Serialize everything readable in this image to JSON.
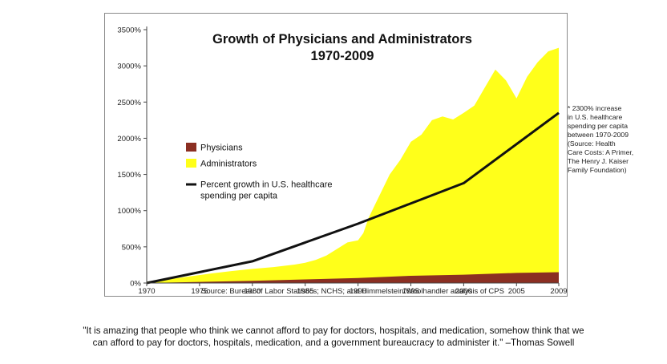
{
  "chart_data": {
    "type": "area",
    "title": [
      "Growth of Physicians and Administrators",
      "1970-2009"
    ],
    "xlabel": "",
    "ylabel": "",
    "x_ticks": [
      "1970",
      "1975",
      "1980",
      "1985",
      "1990",
      "1995",
      "2000",
      "2005",
      "2009"
    ],
    "y_ticks": [
      "0%",
      "500%",
      "1000%",
      "1500%",
      "2000%",
      "2500%",
      "3000%",
      "3500%"
    ],
    "xlim": [
      1970,
      2009
    ],
    "ylim": [
      0,
      3500
    ],
    "source": "Source: Bureau of Labor Statistics; NCHS; and Himmelstein/Woolhandler analysis of CPS",
    "legend": {
      "position": "left-middle",
      "entries": [
        {
          "label": "Physicians",
          "type": "swatch",
          "color": "#8b2f22"
        },
        {
          "label": "Administrators",
          "type": "swatch",
          "color": "#ffff1a"
        },
        {
          "label": [
            "Percent growth in U.S. healthcare",
            "spending per capita"
          ],
          "type": "line",
          "color": "#111111"
        }
      ]
    },
    "series": [
      {
        "name": "Administrators",
        "kind": "area",
        "color": "#ffff1a",
        "x": [
          1970,
          1972,
          1974,
          1976,
          1978,
          1980,
          1982,
          1984,
          1985,
          1986,
          1987,
          1988,
          1989,
          1990,
          1990.5,
          1991,
          1992,
          1993,
          1994,
          1995,
          1996,
          1997,
          1998,
          1999,
          2000,
          2001,
          2002,
          2003,
          2004,
          2005,
          2006,
          2007,
          2008,
          2009
        ],
        "values": [
          20,
          50,
          90,
          130,
          165,
          195,
          220,
          255,
          280,
          320,
          380,
          470,
          560,
          590,
          690,
          900,
          1200,
          1500,
          1700,
          1950,
          2050,
          2250,
          2300,
          2260,
          2350,
          2450,
          2700,
          2950,
          2800,
          2550,
          2850,
          3050,
          3200,
          3250
        ]
      },
      {
        "name": "Physicians",
        "kind": "area",
        "color": "#8b2f22",
        "x": [
          1970,
          1975,
          1980,
          1985,
          1990,
          1995,
          2000,
          2005,
          2009
        ],
        "values": [
          0,
          15,
          30,
          50,
          70,
          100,
          115,
          140,
          150
        ]
      },
      {
        "name": "Percent growth in U.S. healthcare spending per capita",
        "kind": "line",
        "color": "#111111",
        "x": [
          1970,
          1980,
          1990,
          2000,
          2009
        ],
        "values": [
          0,
          300,
          820,
          1380,
          2350
        ]
      }
    ]
  },
  "side_note": [
    "* 2300% increase",
    "in U.S. healthcare",
    "spending per capita",
    "between 1970-2009",
    "(Source: Health",
    "Care Costs: A Primer,",
    "The Henry J. Kaiser",
    "Family Foundation)"
  ],
  "quote": [
    "\"It is amazing that people who think we cannot afford to pay for doctors, hospitals, and medication, somehow think that we",
    "can afford to pay for doctors, hospitals, medication, and a government bureaucracy to administer it.\" –Thomas Sowell"
  ]
}
